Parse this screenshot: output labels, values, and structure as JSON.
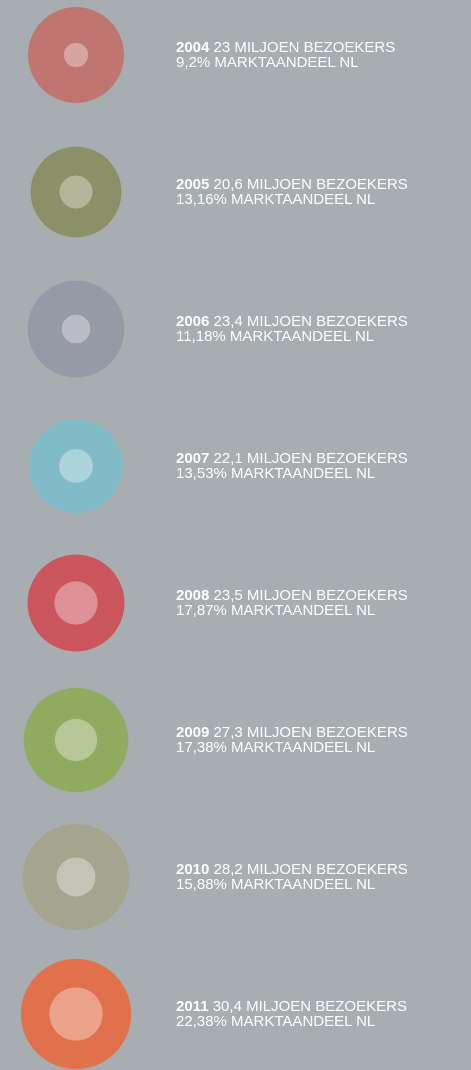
{
  "chart_data": {
    "type": "bubble",
    "categories": [
      "2004",
      "2005",
      "2006",
      "2007",
      "2008",
      "2009",
      "2010",
      "2011"
    ],
    "colors": [
      "#c07570",
      "#8c9068",
      "#9699a6",
      "#80bbc7",
      "#cb555c",
      "#90ab60",
      "#a4a48f",
      "#e0714c"
    ],
    "series": [
      {
        "values": [
          23,
          20.6,
          23.4,
          22.1,
          23.5,
          27.3,
          28.2,
          30.4
        ],
        "value_labels": [
          "23 MILJOEN BEZOEKERS",
          "20,6 MILJOEN BEZOEKERS",
          "23,4 MILJOEN BEZOEKERS",
          "22,1 MILJOEN BEZOEKERS",
          "23,5 MILJOEN BEZOEKERS",
          "27,3 MILJOEN BEZOEKERS",
          "28,2 MILJOEN BEZOEKERS",
          "30,4 MILJOEN BEZOEKERS"
        ]
      },
      {
        "values": [
          9.2,
          13.16,
          11.18,
          13.53,
          17.87,
          17.38,
          15.88,
          22.38
        ],
        "value_labels": [
          "9,2% MARKTAANDEEL NL",
          "13,16% MARKTAANDEEL NL",
          "11,18% MARKTAANDEEL NL",
          "13,53% MARKTAANDEEL NL",
          "17,87% MARKTAANDEEL NL",
          "17,38% MARKTAANDEEL NL",
          "15,88% MARKTAANDEEL NL",
          "22,38% MARKTAANDEEL NL"
        ]
      }
    ]
  }
}
